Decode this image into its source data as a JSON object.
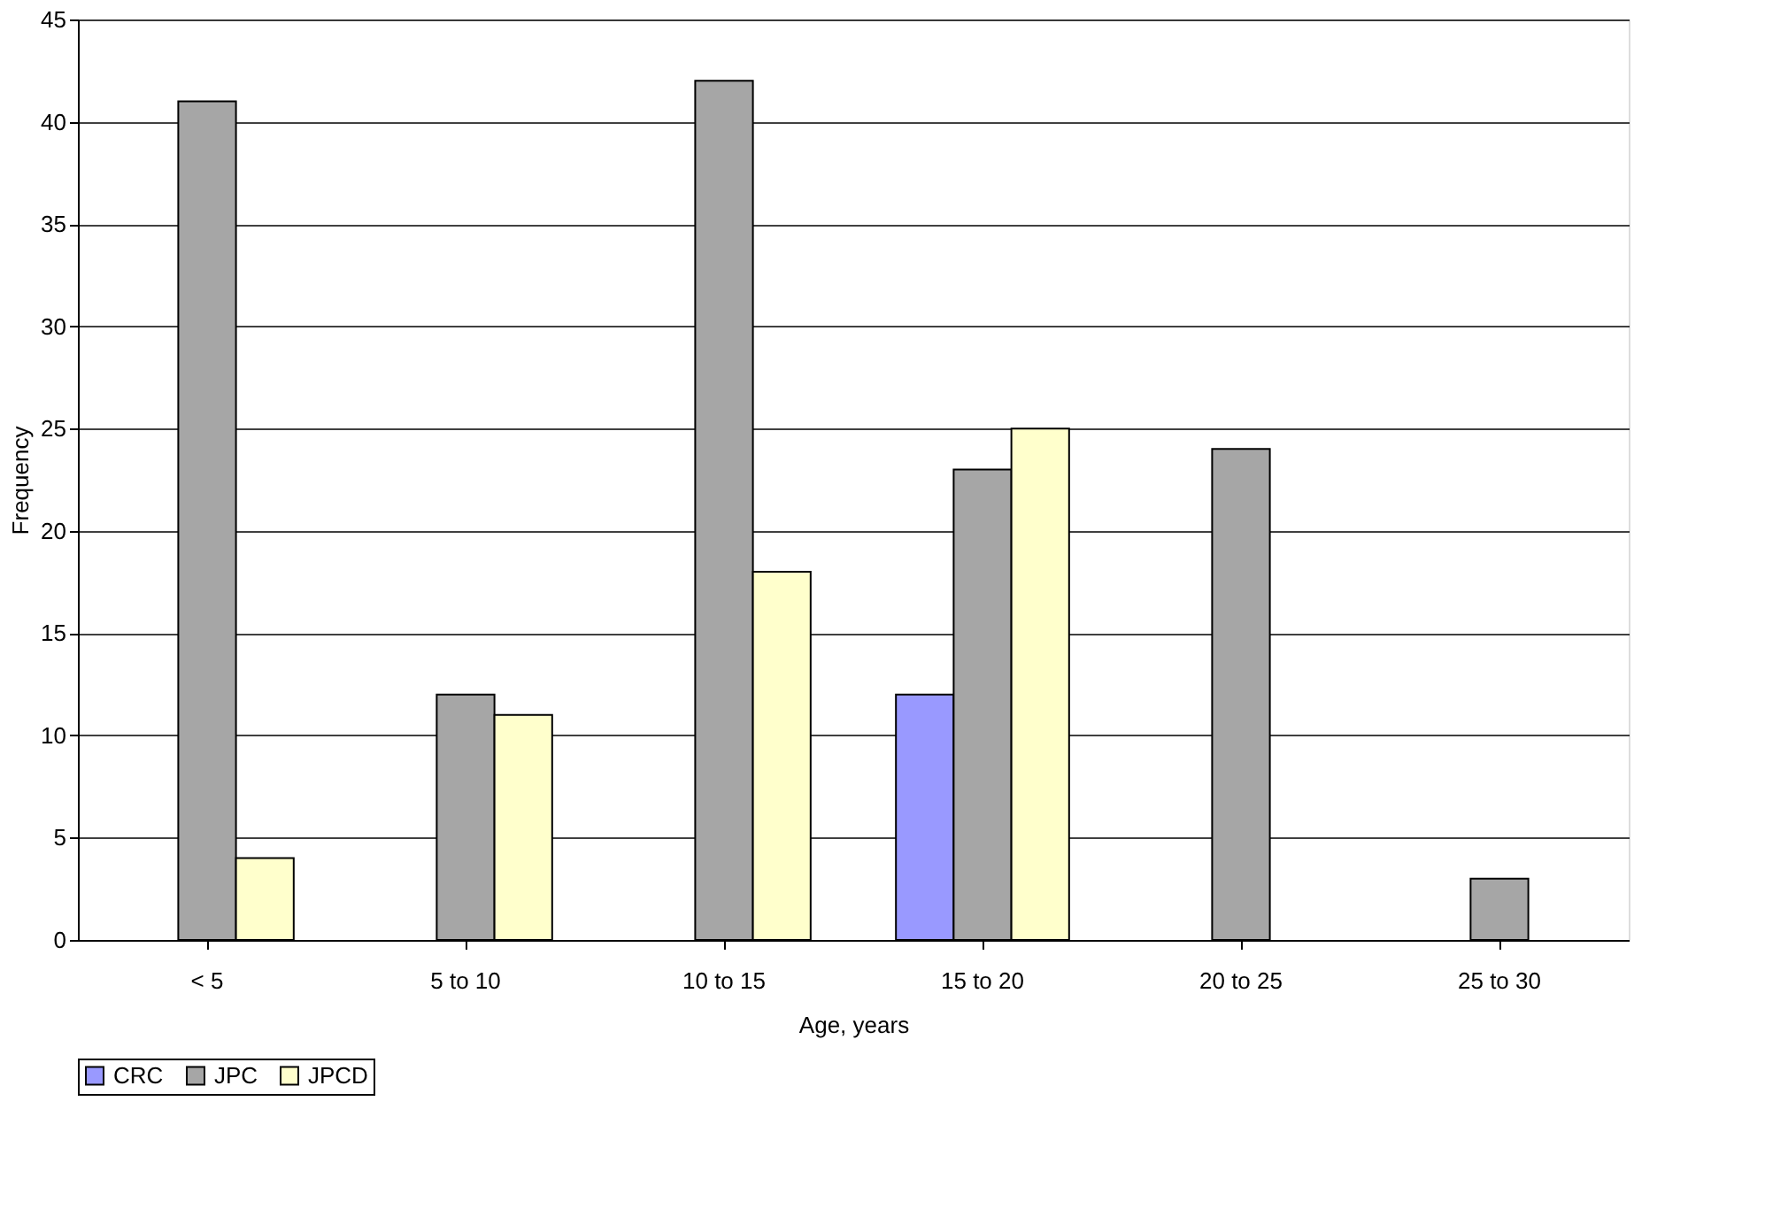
{
  "chart_data": {
    "type": "bar",
    "xlabel": "Age, years",
    "ylabel": "Frequency",
    "categories": [
      "< 5",
      "5 to 10",
      "10 to 15",
      "15 to 20",
      "20 to 25",
      "25 to 30"
    ],
    "series": [
      {
        "name": "CRC",
        "color": "#9999ff",
        "values": [
          null,
          null,
          null,
          12,
          null,
          null
        ]
      },
      {
        "name": "JPC",
        "color": "#a6a6a6",
        "values": [
          41,
          12,
          42,
          23,
          24,
          3
        ]
      },
      {
        "name": "JPCD",
        "color": "#ffffcc",
        "values": [
          4,
          11,
          18,
          25,
          null,
          null
        ]
      }
    ],
    "ylim": [
      0,
      45
    ],
    "yticks": [
      0,
      5,
      10,
      15,
      20,
      25,
      30,
      35,
      40,
      45
    ],
    "grid": "y",
    "legend": "bottom"
  }
}
